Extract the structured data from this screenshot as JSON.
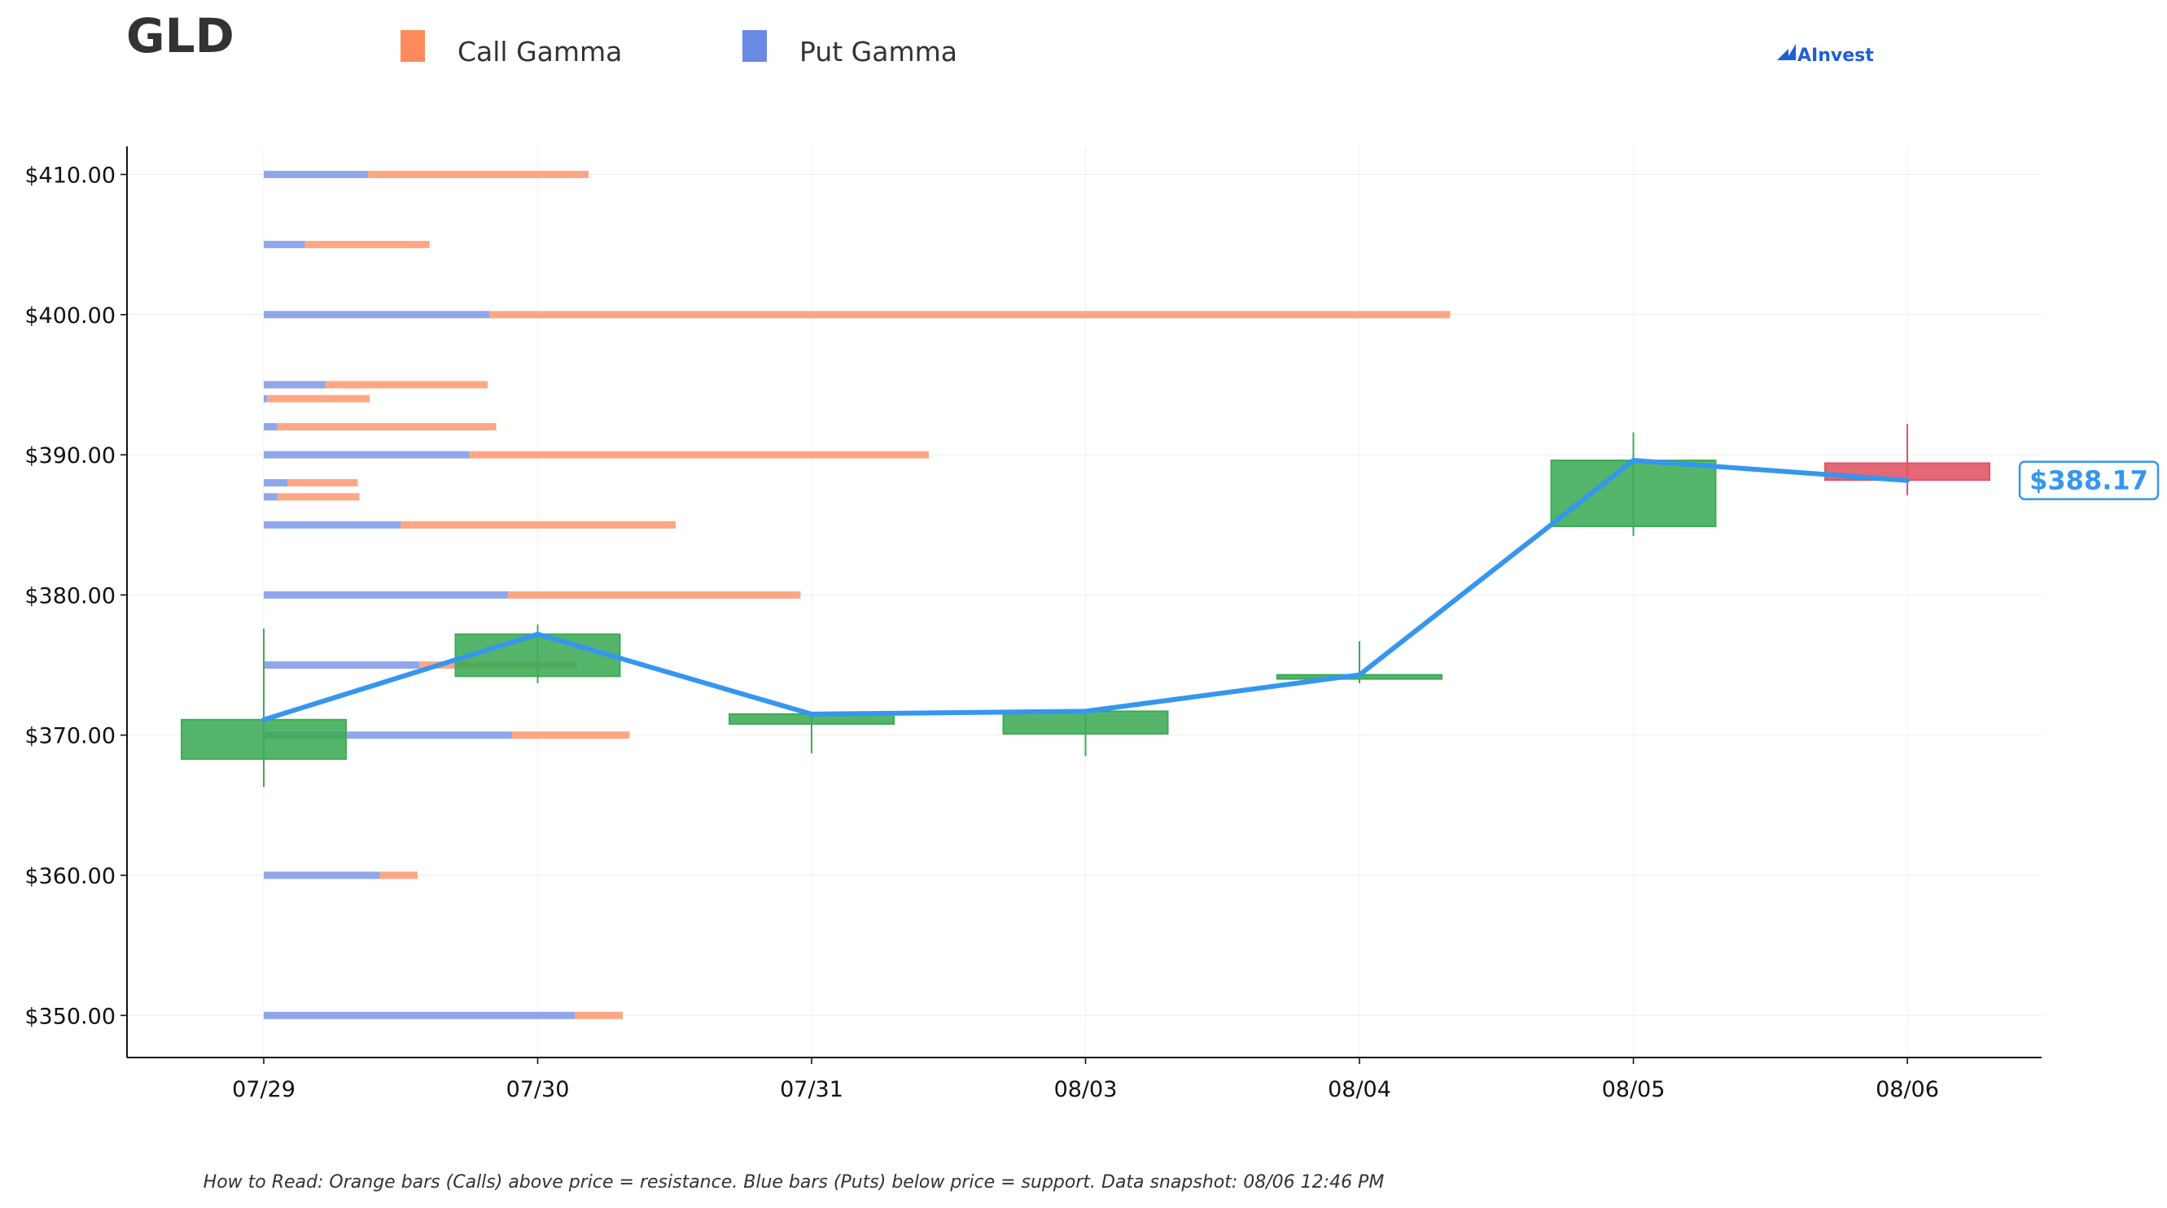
{
  "header": {
    "ticker": "GLD",
    "brand": "AInvest"
  },
  "colors": {
    "call": "#FF8A5B",
    "put": "#6B8AE6",
    "candle_up": "#3CAB55",
    "candle_down": "#E05263",
    "price_line": "#3596F0",
    "brand": "#1F5FD6"
  },
  "chart_data": {
    "type": "candlestick+horizontal-bar",
    "title": "GLD",
    "legend": {
      "placement": "top",
      "entries": [
        "Call Gamma",
        "Put Gamma"
      ]
    },
    "categories": [
      "07/29",
      "07/30",
      "07/31",
      "08/03",
      "08/04",
      "08/05",
      "08/06"
    ],
    "ylim": [
      347,
      412
    ],
    "yticks": [
      350,
      360,
      370,
      380,
      390,
      400,
      410
    ],
    "ytick_labels": [
      "$350.00",
      "$360.00",
      "$370.00",
      "$380.00",
      "$390.00",
      "$400.00",
      "$410.00"
    ],
    "grid": true,
    "candles": [
      {
        "date": "07/29",
        "open": 368.3,
        "high": 377.6,
        "low": 366.3,
        "close": 371.1
      },
      {
        "date": "07/30",
        "open": 374.2,
        "high": 377.9,
        "low": 373.7,
        "close": 377.2
      },
      {
        "date": "07/31",
        "open": 370.8,
        "high": 371.6,
        "low": 368.7,
        "close": 371.5
      },
      {
        "date": "08/03",
        "open": 370.1,
        "high": 371.8,
        "low": 368.5,
        "close": 371.7
      },
      {
        "date": "08/04",
        "open": 374.1,
        "high": 376.7,
        "low": 373.7,
        "close": 374.3
      },
      {
        "date": "08/05",
        "open": 384.9,
        "high": 391.6,
        "low": 384.2,
        "close": 389.6
      },
      {
        "date": "08/06",
        "open": 389.4,
        "high": 392.2,
        "low": 387.1,
        "close": 388.2
      }
    ],
    "price_line": {
      "dates": [
        "07/29",
        "07/30",
        "07/31",
        "08/03",
        "08/04",
        "08/05",
        "08/06"
      ],
      "values": [
        371.1,
        377.2,
        371.5,
        371.7,
        374.3,
        389.6,
        388.17
      ]
    },
    "current_price_label": "$388.17",
    "gamma_bars": [
      {
        "strike": 410,
        "put": 0.61,
        "call": 1.29
      },
      {
        "strike": 405,
        "put": 0.24,
        "call": 0.73
      },
      {
        "strike": 400,
        "put": 1.32,
        "call": 5.62
      },
      {
        "strike": 395,
        "put": 0.36,
        "call": 0.95
      },
      {
        "strike": 394,
        "put": 0.02,
        "call": 0.6
      },
      {
        "strike": 392,
        "put": 0.08,
        "call": 1.28
      },
      {
        "strike": 390,
        "put": 1.2,
        "call": 2.69
      },
      {
        "strike": 388,
        "put": 0.14,
        "call": 0.41
      },
      {
        "strike": 387,
        "put": 0.08,
        "call": 0.48
      },
      {
        "strike": 385,
        "put": 0.8,
        "call": 1.61
      },
      {
        "strike": 380,
        "put": 1.43,
        "call": 1.71
      },
      {
        "strike": 375,
        "put": 0.91,
        "call": 0.92
      },
      {
        "strike": 370,
        "put": 1.45,
        "call": 0.69
      },
      {
        "strike": 360,
        "put": 0.68,
        "call": 0.22
      },
      {
        "strike": 350,
        "put": 1.82,
        "call": 0.28
      }
    ],
    "footnote": "How to Read: Orange bars (Calls) above price = resistance. Blue bars (Puts) below price = support. Data snapshot: 08/06 12:46 PM"
  }
}
